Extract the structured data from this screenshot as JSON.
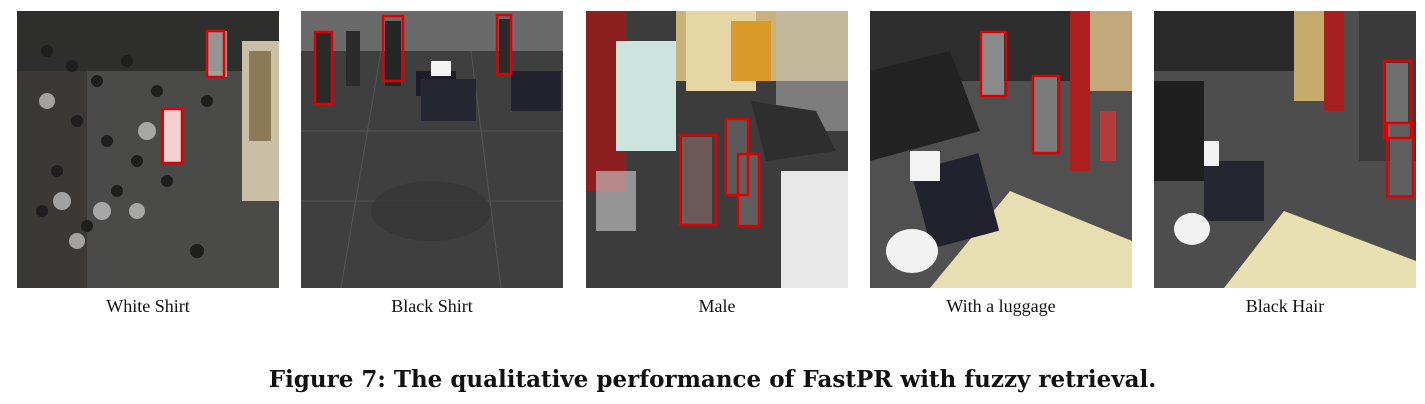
{
  "panels": [
    {
      "caption": "White Shirt"
    },
    {
      "caption": "Black Shirt"
    },
    {
      "caption": "Male"
    },
    {
      "caption": "With a luggage"
    },
    {
      "caption": "Black Hair"
    }
  ],
  "figure_caption": "Figure 7: The qualitative performance of FastPR with fuzzy retrieval.",
  "colors": {
    "detection_box": "#e00000"
  }
}
